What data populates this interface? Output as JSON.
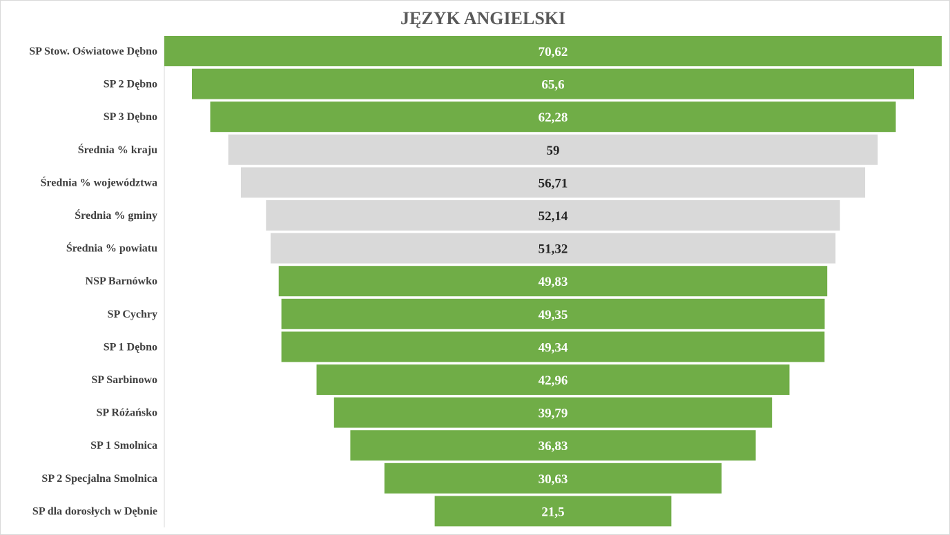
{
  "chart_data": {
    "type": "bar",
    "subtype": "funnel",
    "title": "JĘZYK ANGIELSKI",
    "xlabel": "",
    "ylabel": "",
    "grid": false,
    "legend": "none",
    "xlim": [
      0,
      70.62
    ],
    "colors": {
      "school": "#70AD47",
      "average": "#D9D9D9",
      "school_label": "#FFFFFF",
      "average_label": "#262626"
    },
    "categories": [
      "SP Stow. Oświatowe Dębno",
      "SP 2 Dębno",
      "SP 3 Dębno",
      "Średnia % kraju",
      "Średnia % województwa",
      "Średnia % gminy",
      "Średnia % powiatu",
      "NSP Barnówko",
      "SP Cychry",
      "SP 1 Dębno",
      "SP Sarbinowo",
      "SP Różańsko",
      "SP 1 Smolnica",
      "SP 2 Specjalna Smolnica",
      "SP dla dorosłych w Dębnie"
    ],
    "values": [
      70.62,
      65.6,
      62.28,
      59,
      56.71,
      52.14,
      51.32,
      49.83,
      49.35,
      49.34,
      42.96,
      39.79,
      36.83,
      30.63,
      21.5
    ],
    "value_labels": [
      "70,62",
      "65,6",
      "62,28",
      "59",
      "56,71",
      "52,14",
      "51,32",
      "49,83",
      "49,35",
      "49,34",
      "42,96",
      "39,79",
      "36,83",
      "30,63",
      "21,5"
    ],
    "kinds": [
      "school",
      "school",
      "school",
      "average",
      "average",
      "average",
      "average",
      "school",
      "school",
      "school",
      "school",
      "school",
      "school",
      "school",
      "school"
    ]
  }
}
